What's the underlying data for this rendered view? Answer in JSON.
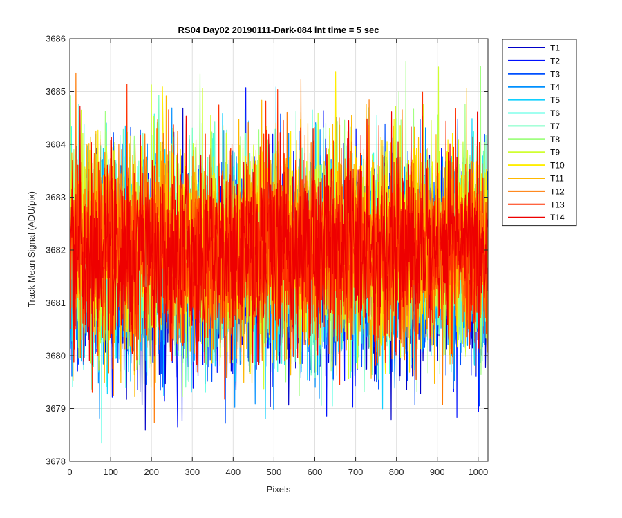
{
  "chart_data": {
    "type": "line",
    "title": "RS04 Day02 20190111-Dark-084 int time = 5 sec",
    "xlabel": "Pixels",
    "ylabel": "Track Mean Signal (ADU/pix)",
    "xlim": [
      0,
      1024
    ],
    "ylim": [
      3678,
      3686
    ],
    "xticks": [
      "0",
      "100",
      "200",
      "300",
      "400",
      "500",
      "600",
      "700",
      "800",
      "900",
      "1000"
    ],
    "yticks": [
      "3678",
      "3679",
      "3680",
      "3681",
      "3682",
      "3683",
      "3684",
      "3685",
      "3686"
    ],
    "grid": true,
    "legend_position": "outside-top-right",
    "x_start": 1,
    "x_end": 1024,
    "series": [
      {
        "name": "T1",
        "color": "#0000c8",
        "mean": 3681.6,
        "std": 0.95,
        "min": 3678.4,
        "max": 3684.8
      },
      {
        "name": "T2",
        "color": "#0010ff",
        "mean": 3681.7,
        "std": 0.95,
        "min": 3678.6,
        "max": 3685.1
      },
      {
        "name": "T3",
        "color": "#0050ff",
        "mean": 3681.8,
        "std": 0.95,
        "min": 3678.7,
        "max": 3685.0
      },
      {
        "name": "T4",
        "color": "#0090ff",
        "mean": 3681.8,
        "std": 0.95,
        "min": 3678.8,
        "max": 3685.2
      },
      {
        "name": "T5",
        "color": "#10d0ff",
        "mean": 3681.9,
        "std": 0.95,
        "min": 3678.0,
        "max": 3685.3
      },
      {
        "name": "T6",
        "color": "#40ffe0",
        "mean": 3681.9,
        "std": 0.95,
        "min": 3678.2,
        "max": 3685.4
      },
      {
        "name": "T7",
        "color": "#70ffc0",
        "mean": 3682.0,
        "std": 0.95,
        "min": 3678.4,
        "max": 3685.6
      },
      {
        "name": "T8",
        "color": "#a0ff80",
        "mean": 3682.0,
        "std": 0.95,
        "min": 3679.0,
        "max": 3685.6
      },
      {
        "name": "T9",
        "color": "#d0ff30",
        "mean": 3682.1,
        "std": 0.95,
        "min": 3678.5,
        "max": 3685.9
      },
      {
        "name": "T10",
        "color": "#ffee00",
        "mean": 3682.2,
        "std": 0.95,
        "min": 3679.6,
        "max": 3685.5
      },
      {
        "name": "T11",
        "color": "#ffb800",
        "mean": 3682.1,
        "std": 0.95,
        "min": 3679.2,
        "max": 3685.3
      },
      {
        "name": "T12",
        "color": "#ff7800",
        "mean": 3682.0,
        "std": 0.95,
        "min": 3678.7,
        "max": 3685.4
      },
      {
        "name": "T13",
        "color": "#ff3000",
        "mean": 3682.0,
        "std": 0.95,
        "min": 3678.8,
        "max": 3685.2
      },
      {
        "name": "T14",
        "color": "#ee0000",
        "mean": 3682.0,
        "std": 0.9,
        "min": 3679.8,
        "max": 3684.8
      }
    ]
  }
}
